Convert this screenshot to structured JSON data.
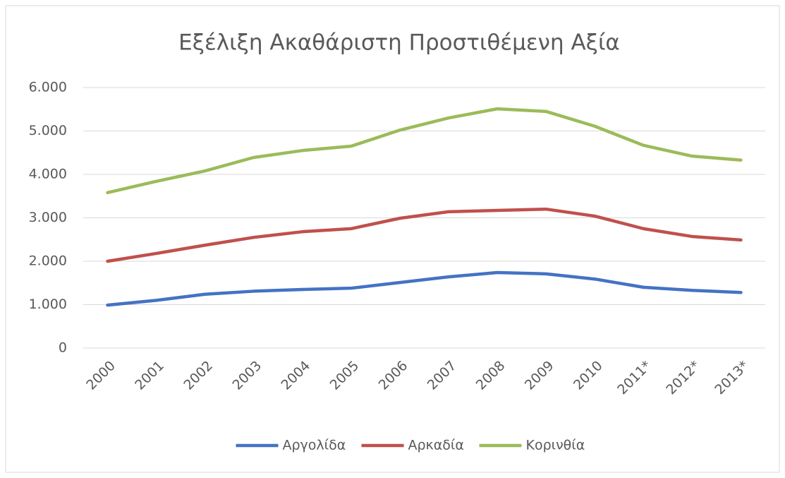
{
  "chart_data": {
    "type": "line",
    "title": "Εξέλιξη Ακαθάριστη Προστιθέμενη Αξία",
    "categories": [
      "2000",
      "2001",
      "2002",
      "2003",
      "2004",
      "2005",
      "2006",
      "2007",
      "2008",
      "2009",
      "2010",
      "2011*",
      "2012*",
      "2013*"
    ],
    "series": [
      {
        "name": "Αργολίδα",
        "color": "#4472c4",
        "values": [
          990,
          1100,
          1240,
          1310,
          1350,
          1380,
          1510,
          1640,
          1740,
          1710,
          1590,
          1400,
          1330,
          1280
        ]
      },
      {
        "name": "Αρκαδία",
        "color": "#c0504d",
        "values": [
          2000,
          2180,
          2370,
          2550,
          2680,
          2750,
          2990,
          3140,
          3170,
          3200,
          3040,
          2750,
          2570,
          2490
        ]
      },
      {
        "name": "Κορινθία",
        "color": "#9bbb59",
        "values": [
          3580,
          3840,
          4080,
          4390,
          4550,
          4650,
          5020,
          5300,
          5510,
          5450,
          5110,
          4670,
          4420,
          4330
        ]
      }
    ],
    "ylim": [
      0,
      6000
    ],
    "yticks": [
      0,
      {
        "value": 1000,
        "label": "1.000"
      },
      {
        "value": 2000,
        "label": "2.000"
      },
      {
        "value": 3000,
        "label": "3.000"
      },
      {
        "value": 4000,
        "label": "4.000"
      },
      {
        "value": 5000,
        "label": "5.000"
      },
      {
        "value": 6000,
        "label": "6.000"
      }
    ],
    "grid": true,
    "legend": "bottom"
  }
}
